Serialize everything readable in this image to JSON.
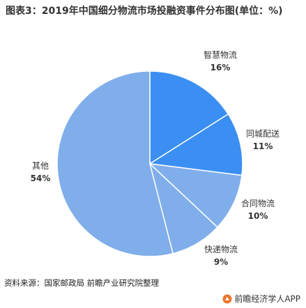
{
  "title": "图表3：2019年中国细分物流市场投融资事件分布图(单位：%)",
  "source": "资料来源：国家邮政局 前瞻产业研究院整理",
  "brand": "前瞻经济学人APP",
  "colors": {
    "dark": "#3b8ff2",
    "light": "#80aeeb",
    "stroke": "#ffffff"
  },
  "chart_data": {
    "type": "pie",
    "slices": [
      {
        "name": "智慧物流",
        "value": 16,
        "label": "16%",
        "color": "#3b8ff2"
      },
      {
        "name": "同城配送",
        "value": 11,
        "label": "11%",
        "color": "#3b8ff2"
      },
      {
        "name": "合同物流",
        "value": 10,
        "label": "10%",
        "color": "#80aeeb"
      },
      {
        "name": "快递物流",
        "value": 9,
        "label": "9%",
        "color": "#80aeeb"
      },
      {
        "name": "其他",
        "value": 54,
        "label": "54%",
        "color": "#80aeeb"
      }
    ]
  }
}
